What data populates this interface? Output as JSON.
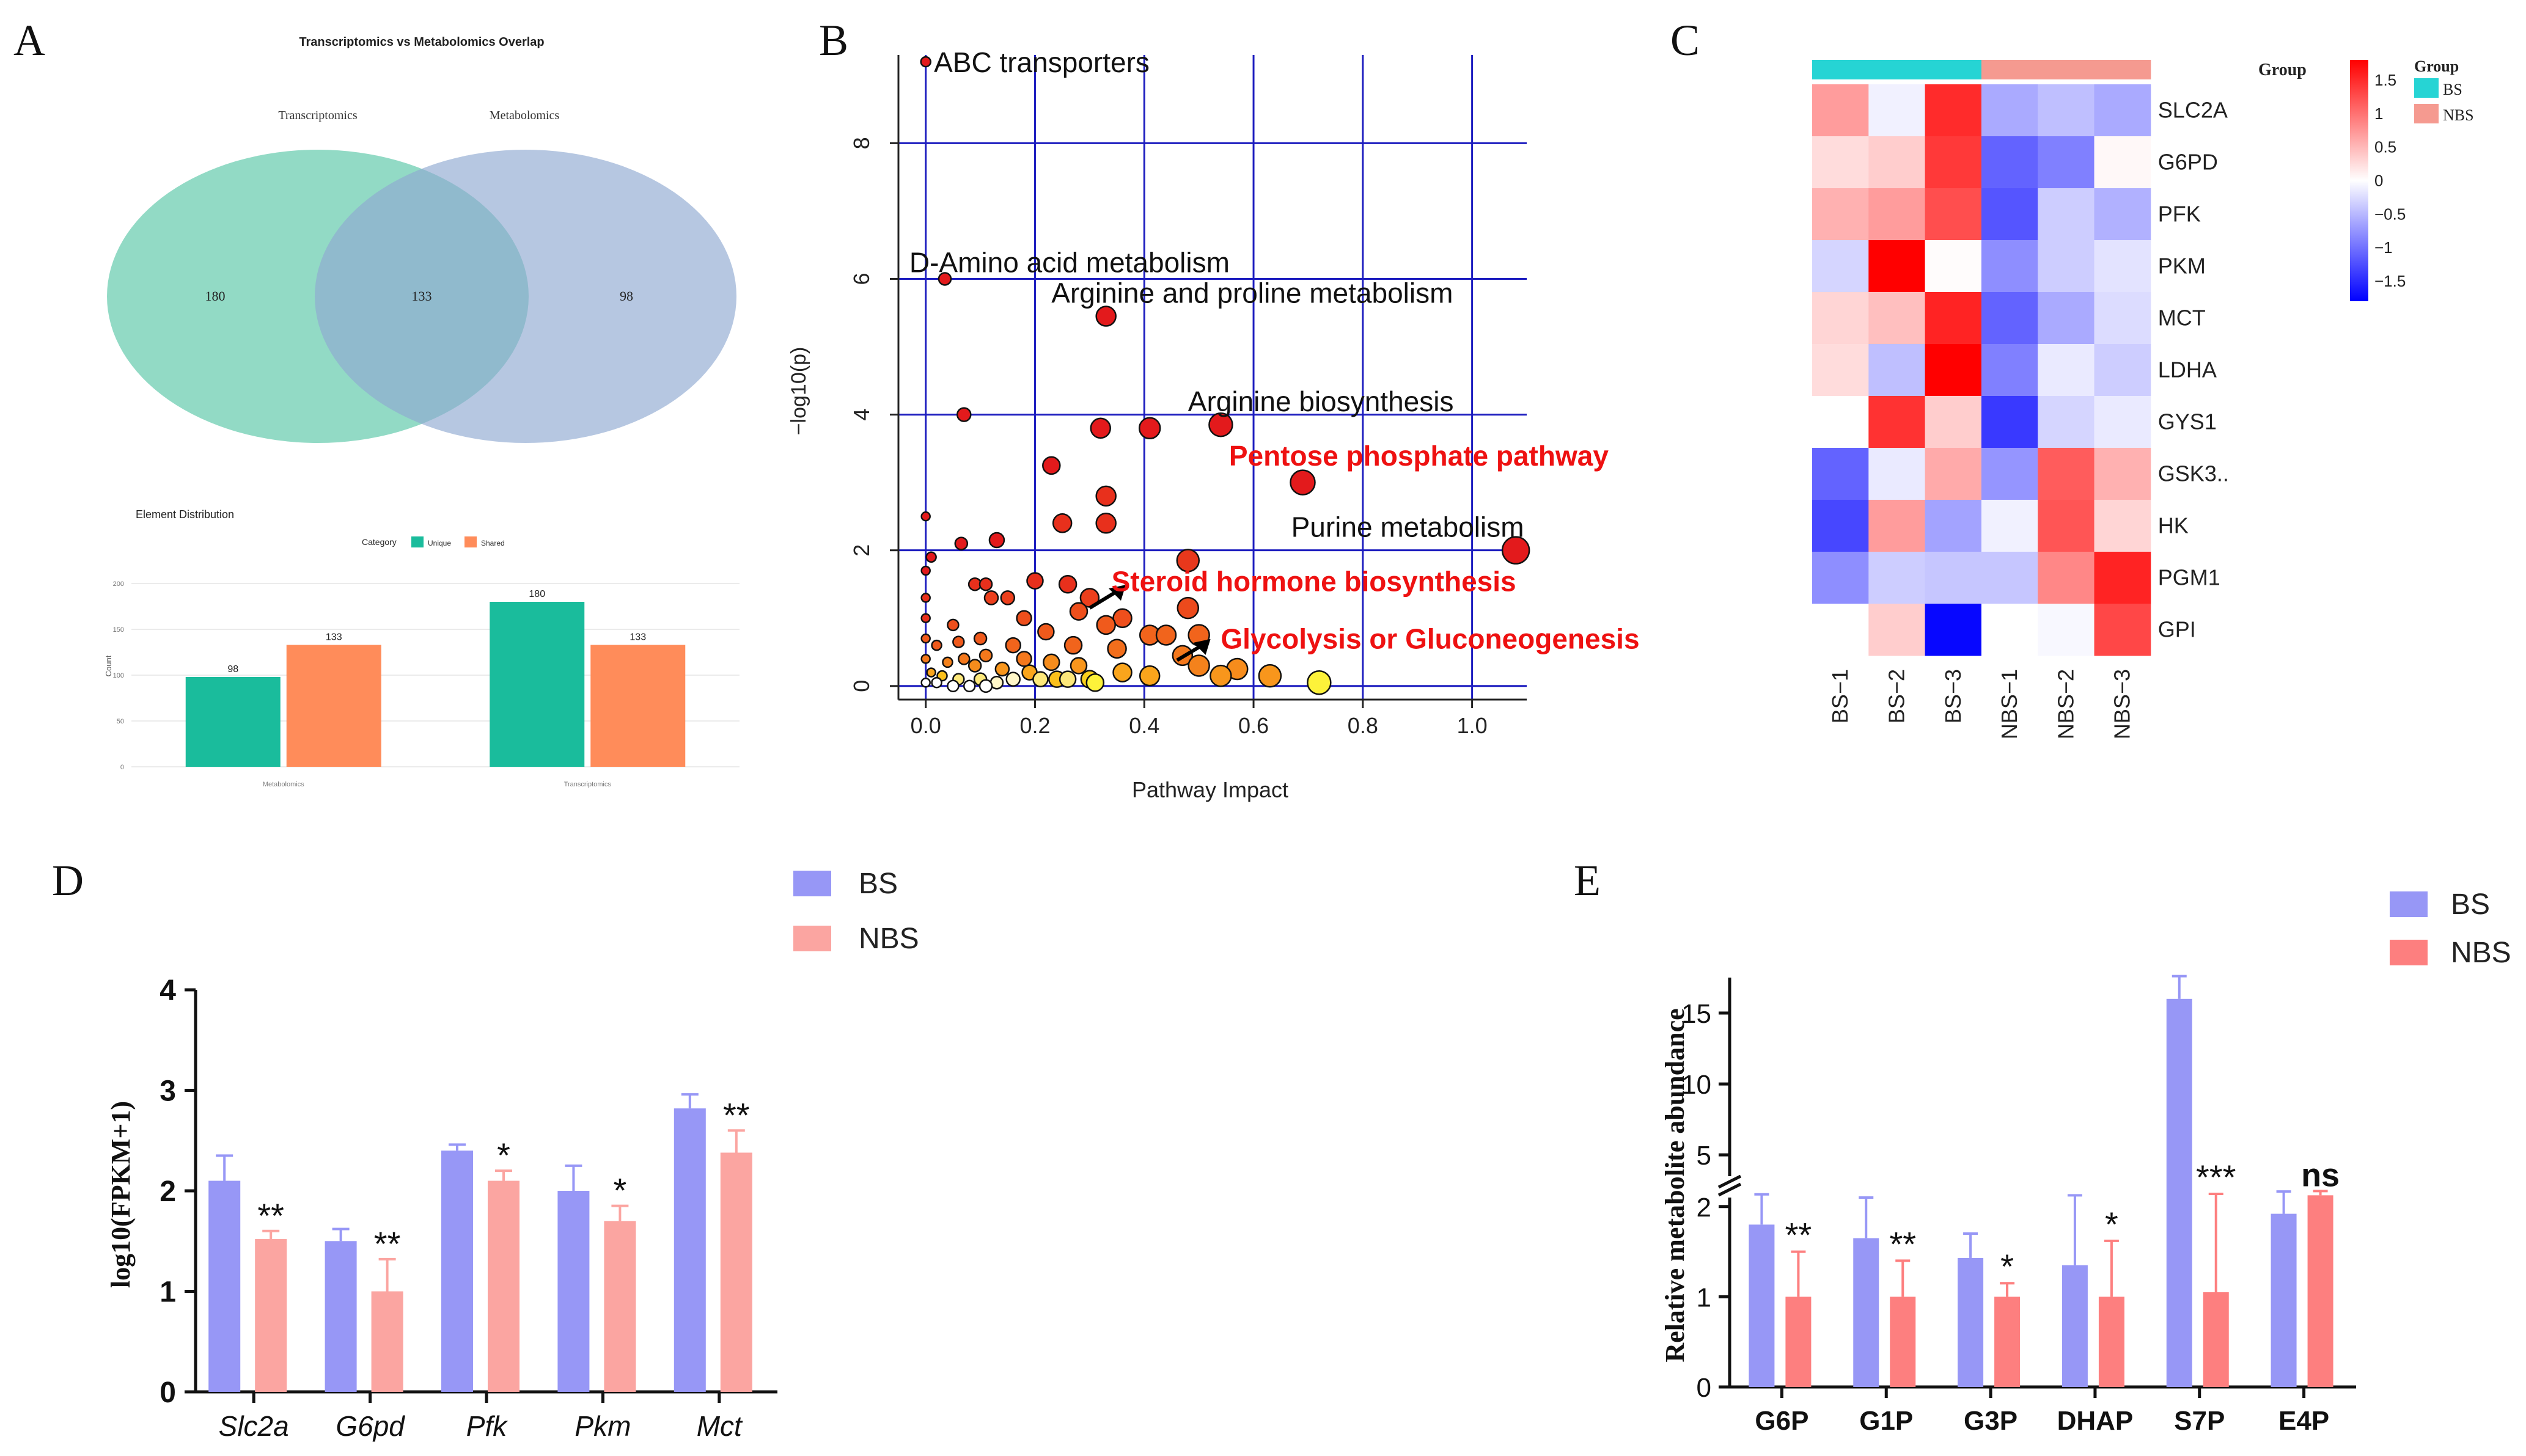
{
  "panel_labels": {
    "a": "A",
    "b": "B",
    "c": "C",
    "d": "D",
    "e": "E"
  },
  "chart_data": [
    {
      "panel": "A-top",
      "type": "venn",
      "title": "Transcriptomics vs Metabolomics Overlap",
      "sets": [
        {
          "name": "Transcriptomics",
          "color": "#66cdaa"
        },
        {
          "name": "Metabolomics",
          "color": "#8fa9d1"
        }
      ],
      "regions": {
        "left_only": "180",
        "overlap": "133",
        "right_only": "98"
      }
    },
    {
      "panel": "A-bottom",
      "type": "bar",
      "title": "Element Distribution",
      "legend_title": "Category",
      "ylabel": "Count",
      "ylim": [
        0,
        200
      ],
      "yticks": [
        0,
        50,
        100,
        150,
        200
      ],
      "categories": [
        "Metabolomics",
        "Transcriptomics"
      ],
      "series": [
        {
          "name": "Unique",
          "color": "#1abc9c",
          "values": [
            98,
            180
          ]
        },
        {
          "name": "Shared",
          "color": "#ff8c5a",
          "values": [
            133,
            133
          ]
        }
      ]
    },
    {
      "panel": "B",
      "type": "scatter",
      "xlabel": "Pathway Impact",
      "ylabel": "−log10(p)",
      "xlim": [
        -0.05,
        1.1
      ],
      "ylim": [
        -0.2,
        9.3
      ],
      "xticks": [
        "0.0",
        "0.2",
        "0.4",
        "0.6",
        "0.8",
        "1.0"
      ],
      "yticks": [
        "0",
        "2",
        "4",
        "6",
        "8"
      ],
      "points": [
        {
          "x": 0.0,
          "y": 9.2,
          "r": 8,
          "c": "#e31a1c"
        },
        {
          "x": 0.035,
          "y": 6.0,
          "r": 10,
          "c": "#e31a1c"
        },
        {
          "x": 0.07,
          "y": 4.0,
          "r": 11,
          "c": "#e31a1c"
        },
        {
          "x": 0.33,
          "y": 5.45,
          "r": 16,
          "c": "#e31a1c"
        },
        {
          "x": 0.54,
          "y": 3.85,
          "r": 19,
          "c": "#e31a1c"
        },
        {
          "x": 0.41,
          "y": 3.8,
          "r": 17,
          "c": "#e31a1c"
        },
        {
          "x": 0.32,
          "y": 3.8,
          "r": 16,
          "c": "#e31a1c"
        },
        {
          "x": 0.23,
          "y": 3.25,
          "r": 14,
          "c": "#e31a1c"
        },
        {
          "x": 0.69,
          "y": 3.0,
          "r": 20,
          "c": "#e31a1c"
        },
        {
          "x": 1.08,
          "y": 2.0,
          "r": 22,
          "c": "#e31a1c"
        },
        {
          "x": 0.33,
          "y": 2.8,
          "r": 16,
          "c": "#e8301c"
        },
        {
          "x": 0.33,
          "y": 2.4,
          "r": 16,
          "c": "#e8301c"
        },
        {
          "x": 0.25,
          "y": 2.4,
          "r": 15,
          "c": "#e8301c"
        },
        {
          "x": 0.48,
          "y": 1.85,
          "r": 18,
          "c": "#e8381c"
        },
        {
          "x": 0.0,
          "y": 2.5,
          "r": 7,
          "c": "#e31a1c"
        },
        {
          "x": 0.01,
          "y": 1.9,
          "r": 8,
          "c": "#e31a1c"
        },
        {
          "x": 0.065,
          "y": 2.1,
          "r": 10,
          "c": "#e31a1c"
        },
        {
          "x": 0.13,
          "y": 2.15,
          "r": 12,
          "c": "#e31a1c"
        },
        {
          "x": 0.0,
          "y": 1.7,
          "r": 7,
          "c": "#e31a1c"
        },
        {
          "x": 0.0,
          "y": 1.3,
          "r": 7,
          "c": "#e8301c"
        },
        {
          "x": 0.0,
          "y": 1.0,
          "r": 7,
          "c": "#e8301c"
        },
        {
          "x": 0.09,
          "y": 1.5,
          "r": 10,
          "c": "#e8301c"
        },
        {
          "x": 0.11,
          "y": 1.5,
          "r": 10,
          "c": "#e8301c"
        },
        {
          "x": 0.2,
          "y": 1.55,
          "r": 13,
          "c": "#e8301c"
        },
        {
          "x": 0.26,
          "y": 1.5,
          "r": 14,
          "c": "#e8301c"
        },
        {
          "x": 0.3,
          "y": 1.3,
          "r": 15,
          "c": "#ec3f1c"
        },
        {
          "x": 0.12,
          "y": 1.3,
          "r": 11,
          "c": "#ec3f1c"
        },
        {
          "x": 0.15,
          "y": 1.3,
          "r": 11,
          "c": "#ec3f1c"
        },
        {
          "x": 0.48,
          "y": 1.15,
          "r": 17,
          "c": "#ec4a1c"
        },
        {
          "x": 0.36,
          "y": 1.0,
          "r": 15,
          "c": "#ee4f1c"
        },
        {
          "x": 0.28,
          "y": 1.1,
          "r": 14,
          "c": "#ee4f1c"
        },
        {
          "x": 0.18,
          "y": 1.0,
          "r": 12,
          "c": "#ee4f1c"
        },
        {
          "x": 0.22,
          "y": 0.8,
          "r": 13,
          "c": "#f05a1c"
        },
        {
          "x": 0.33,
          "y": 0.9,
          "r": 15,
          "c": "#f05a1c"
        },
        {
          "x": 0.41,
          "y": 0.75,
          "r": 16,
          "c": "#f1641c"
        },
        {
          "x": 0.44,
          "y": 0.75,
          "r": 16,
          "c": "#f1641c"
        },
        {
          "x": 0.5,
          "y": 0.75,
          "r": 17,
          "c": "#f1641c"
        },
        {
          "x": 0.05,
          "y": 0.9,
          "r": 9,
          "c": "#ee4f1c"
        },
        {
          "x": 0.0,
          "y": 0.7,
          "r": 7,
          "c": "#f05a1c"
        },
        {
          "x": 0.02,
          "y": 0.6,
          "r": 8,
          "c": "#f05a1c"
        },
        {
          "x": 0.06,
          "y": 0.65,
          "r": 9,
          "c": "#f05a1c"
        },
        {
          "x": 0.1,
          "y": 0.7,
          "r": 10,
          "c": "#f05a1c"
        },
        {
          "x": 0.16,
          "y": 0.6,
          "r": 12,
          "c": "#f1641c"
        },
        {
          "x": 0.27,
          "y": 0.6,
          "r": 14,
          "c": "#f1641c"
        },
        {
          "x": 0.35,
          "y": 0.55,
          "r": 15,
          "c": "#f26e1c"
        },
        {
          "x": 0.47,
          "y": 0.45,
          "r": 16,
          "c": "#f4781c"
        },
        {
          "x": 0.5,
          "y": 0.3,
          "r": 17,
          "c": "#f4821c"
        },
        {
          "x": 0.57,
          "y": 0.25,
          "r": 17,
          "c": "#f68c1c"
        },
        {
          "x": 0.63,
          "y": 0.15,
          "r": 18,
          "c": "#f8961c"
        },
        {
          "x": 0.54,
          "y": 0.15,
          "r": 17,
          "c": "#f8961c"
        },
        {
          "x": 0.41,
          "y": 0.15,
          "r": 16,
          "c": "#faa51c"
        },
        {
          "x": 0.36,
          "y": 0.2,
          "r": 15,
          "c": "#faa51c"
        },
        {
          "x": 0.3,
          "y": 0.1,
          "r": 14,
          "c": "#fbd01c"
        },
        {
          "x": 0.72,
          "y": 0.05,
          "r": 19,
          "c": "#fdf23a"
        },
        {
          "x": 0.24,
          "y": 0.1,
          "r": 13,
          "c": "#fbc01c"
        },
        {
          "x": 0.19,
          "y": 0.2,
          "r": 12,
          "c": "#faa51c"
        },
        {
          "x": 0.14,
          "y": 0.25,
          "r": 11,
          "c": "#f8961c"
        },
        {
          "x": 0.09,
          "y": 0.3,
          "r": 10,
          "c": "#f68c1c"
        },
        {
          "x": 0.04,
          "y": 0.35,
          "r": 8,
          "c": "#f4821c"
        },
        {
          "x": 0.0,
          "y": 0.4,
          "r": 7,
          "c": "#f4781c"
        },
        {
          "x": 0.01,
          "y": 0.2,
          "r": 7,
          "c": "#faa51c"
        },
        {
          "x": 0.03,
          "y": 0.15,
          "r": 8,
          "c": "#fbc01c"
        },
        {
          "x": 0.06,
          "y": 0.1,
          "r": 9,
          "c": "#fde87a"
        },
        {
          "x": 0.1,
          "y": 0.1,
          "r": 10,
          "c": "#fde87a"
        },
        {
          "x": 0.13,
          "y": 0.05,
          "r": 10,
          "c": "#fff7c8"
        },
        {
          "x": 0.02,
          "y": 0.05,
          "r": 8,
          "c": "#ffffff"
        },
        {
          "x": 0.05,
          "y": 0.0,
          "r": 9,
          "c": "#ffffff"
        },
        {
          "x": 0.08,
          "y": 0.0,
          "r": 9,
          "c": "#ffffff"
        },
        {
          "x": 0.11,
          "y": 0.0,
          "r": 10,
          "c": "#ffffff"
        },
        {
          "x": 0.16,
          "y": 0.1,
          "r": 11,
          "c": "#fff7c8"
        },
        {
          "x": 0.21,
          "y": 0.1,
          "r": 12,
          "c": "#fde87a"
        },
        {
          "x": 0.26,
          "y": 0.1,
          "r": 13,
          "c": "#fde87a"
        },
        {
          "x": 0.31,
          "y": 0.05,
          "r": 14,
          "c": "#fdf23a"
        },
        {
          "x": 0.0,
          "y": 0.05,
          "r": 7,
          "c": "#ffffff"
        },
        {
          "x": 0.18,
          "y": 0.4,
          "r": 12,
          "c": "#f4781c"
        },
        {
          "x": 0.23,
          "y": 0.35,
          "r": 13,
          "c": "#f68c1c"
        },
        {
          "x": 0.28,
          "y": 0.3,
          "r": 13,
          "c": "#f8961c"
        },
        {
          "x": 0.11,
          "y": 0.45,
          "r": 10,
          "c": "#f4781c"
        },
        {
          "x": 0.07,
          "y": 0.4,
          "r": 9,
          "c": "#f4781c"
        }
      ],
      "labels": [
        {
          "text": "ABC transporters",
          "x": 0.015,
          "y": 9.05,
          "red": false,
          "anchor": "start"
        },
        {
          "text": "D-Amino acid metabolism",
          "x": -0.03,
          "y": 6.1,
          "red": false,
          "anchor": "start"
        },
        {
          "text": "Arginine and proline metabolism",
          "x": 0.23,
          "y": 5.65,
          "red": false,
          "anchor": "start"
        },
        {
          "text": "Arginine biosynthesis",
          "x": 0.48,
          "y": 4.05,
          "red": false,
          "anchor": "start"
        },
        {
          "text": "Pentose phosphate pathway",
          "x": 0.555,
          "y": 3.25,
          "red": true,
          "anchor": "start"
        },
        {
          "text": "Purine metabolism",
          "x": 1.095,
          "y": 2.2,
          "red": false,
          "anchor": "end"
        },
        {
          "text": "Steroid hormone biosynthesis",
          "x": 0.34,
          "y": 1.4,
          "red": true,
          "anchor": "start"
        },
        {
          "text": "Glycolysis or Gluconeogenesis",
          "x": 0.54,
          "y": 0.55,
          "red": true,
          "anchor": "start"
        }
      ]
    },
    {
      "panel": "C",
      "type": "heatmap",
      "rows": [
        "SLC2A",
        "G6PD",
        "PFK",
        "PKM",
        "MCT",
        "LDHA",
        "GYS1",
        "GSK3..",
        "HK",
        "PGM1",
        "GPI"
      ],
      "columns": [
        "BS−1",
        "BS−2",
        "BS−3",
        "NBS−1",
        "NBS−2",
        "NBS−3"
      ],
      "column_groups": [
        "BS",
        "BS",
        "BS",
        "NBS",
        "NBS",
        "NBS"
      ],
      "values": [
        [
          0.7,
          -0.1,
          1.5,
          -0.6,
          -0.45,
          -0.6
        ],
        [
          0.25,
          0.35,
          1.4,
          -1.1,
          -0.9,
          0.05
        ],
        [
          0.55,
          0.7,
          1.25,
          -1.2,
          -0.35,
          -0.55
        ],
        [
          -0.3,
          1.8,
          0.02,
          -0.8,
          -0.35,
          -0.2
        ],
        [
          0.3,
          0.45,
          1.55,
          -1.1,
          -0.6,
          -0.25
        ],
        [
          0.25,
          -0.45,
          1.8,
          -0.9,
          -0.15,
          -0.35
        ],
        [
          0.0,
          1.45,
          0.35,
          -1.4,
          -0.3,
          -0.15
        ],
        [
          -1.1,
          -0.15,
          0.6,
          -0.75,
          1.15,
          0.55
        ],
        [
          -1.3,
          0.7,
          -0.65,
          -0.1,
          1.2,
          0.3
        ],
        [
          -0.8,
          -0.35,
          -0.4,
          -0.4,
          0.85,
          1.55
        ],
        [
          0.0,
          0.35,
          -1.75,
          0.0,
          -0.05,
          1.3
        ]
      ],
      "group_colors": {
        "BS": "#26d4d4",
        "NBS": "#f59a90"
      },
      "color_scale": {
        "min": -1.8,
        "max": 1.8,
        "low": "#0000ff",
        "mid": "#ffffff",
        "high": "#ff0000"
      },
      "color_ticks": [
        1.5,
        1,
        0.5,
        0,
        -0.5,
        -1,
        -1.5
      ],
      "color_tick_labels": [
        "1.5",
        "1",
        "0.5",
        "0",
        "−0.5",
        "−1",
        "−1.5"
      ],
      "legend_title": "Group",
      "group_bar_label": "Group"
    },
    {
      "panel": "D",
      "type": "bar",
      "ylabel": "log10(FPKM+1)",
      "ylim": [
        0,
        4
      ],
      "yticks": [
        "0",
        "1",
        "2",
        "3",
        "4"
      ],
      "categories": [
        "Slc2a",
        "G6pd",
        "Pfk",
        "Pkm",
        "Mct"
      ],
      "series": [
        {
          "name": "BS",
          "color": "#9797f6",
          "values": [
            2.1,
            1.5,
            2.4,
            2.0,
            2.82
          ],
          "errors": [
            0.25,
            0.12,
            0.06,
            0.25,
            0.14
          ]
        },
        {
          "name": "NBS",
          "color": "#fba5a1",
          "values": [
            1.52,
            1.0,
            2.1,
            1.7,
            2.38
          ],
          "errors": [
            0.08,
            0.32,
            0.1,
            0.15,
            0.22
          ]
        }
      ],
      "significance": [
        "**",
        "**",
        "*",
        "*",
        "**"
      ]
    },
    {
      "panel": "E",
      "type": "bar",
      "ylabel": "Relative metabolite abundance",
      "broken_axis": true,
      "yticks_lower": [
        "0",
        "1",
        "2"
      ],
      "yticks_upper": [
        "5",
        "10",
        "15"
      ],
      "ylim_lower": [
        0,
        2.1
      ],
      "ylim_upper": [
        3.5,
        17.5
      ],
      "categories": [
        "G6P",
        "G1P",
        "G3P",
        "DHAP",
        "S7P",
        "E4P"
      ],
      "series": [
        {
          "name": "BS",
          "color": "#9797f6",
          "values": [
            1.8,
            1.65,
            1.43,
            1.35,
            16.0,
            1.92
          ],
          "errors": [
            0.42,
            0.45,
            0.27,
            0.8,
            1.6,
            0.5
          ]
        },
        {
          "name": "NBS",
          "color": "#fd7f7f",
          "values": [
            1.0,
            1.0,
            1.0,
            1.0,
            1.05,
            2.15
          ],
          "errors": [
            0.5,
            0.4,
            0.15,
            0.62,
            1.2,
            0.3
          ]
        }
      ],
      "significance": [
        "**",
        "**",
        "*",
        "*",
        "***",
        "ns"
      ]
    }
  ]
}
